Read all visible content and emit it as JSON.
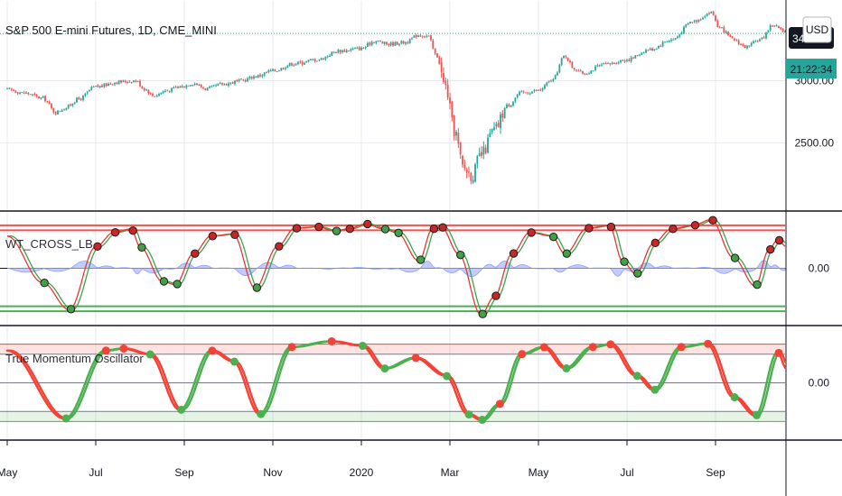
{
  "header": {
    "symbol_title": "S&P 500 E-mini Futures, 1D, CME_MINI",
    "currency_button": "USD",
    "price_badge": "34",
    "time_badge": "21:22:34"
  },
  "colors": {
    "up": "#26a69a",
    "down": "#ef5350",
    "wt_fast": "#e53935",
    "wt_slow": "#43a047",
    "wt_area": "#9fa8ff",
    "ob_line": "#ef5350",
    "os_line": "#4caf50",
    "tmo_up": "#4caf50",
    "tmo_down": "#f44336",
    "grid": "#e6e9ef",
    "axis": "#131722",
    "badge_bg": "#131722"
  },
  "chart_data": [
    {
      "type": "candlestick",
      "title": "S&P 500 E-mini Futures, 1D, CME_MINI",
      "ylim": [
        1950,
        3650
      ],
      "y_ticks": [
        "2500.00",
        "3000.00"
      ],
      "x_labels": [
        "May",
        "Jul",
        "Sep",
        "Nov",
        "2020",
        "Mar",
        "May",
        "Jul",
        "Sep"
      ],
      "x_months": [
        0,
        2,
        4,
        6,
        8,
        10,
        12,
        14,
        16
      ],
      "x_end": 17.6,
      "close_anchors": [
        [
          0,
          2930
        ],
        [
          0.4,
          2900
        ],
        [
          0.8,
          2860
        ],
        [
          1.1,
          2745
        ],
        [
          1.3,
          2780
        ],
        [
          1.6,
          2850
        ],
        [
          2.0,
          2950
        ],
        [
          2.5,
          2990
        ],
        [
          2.9,
          3000
        ],
        [
          3.1,
          2935
        ],
        [
          3.3,
          2880
        ],
        [
          3.6,
          2920
        ],
        [
          3.9,
          2950
        ],
        [
          4.2,
          2980
        ],
        [
          4.5,
          2935
        ],
        [
          4.9,
          2975
        ],
        [
          5.3,
          3000
        ],
        [
          5.6,
          3035
        ],
        [
          6.0,
          3080
        ],
        [
          6.5,
          3140
        ],
        [
          7.0,
          3170
        ],
        [
          7.5,
          3240
        ],
        [
          8.0,
          3260
        ],
        [
          8.3,
          3320
        ],
        [
          8.6,
          3295
        ],
        [
          9.0,
          3310
        ],
        [
          9.3,
          3370
        ],
        [
          9.5,
          3360
        ],
        [
          9.7,
          3200
        ],
        [
          9.9,
          2950
        ],
        [
          10.1,
          2600
        ],
        [
          10.3,
          2300
        ],
        [
          10.5,
          2240
        ],
        [
          10.7,
          2400
        ],
        [
          11.0,
          2600
        ],
        [
          11.3,
          2800
        ],
        [
          11.6,
          2900
        ],
        [
          12.0,
          2920
        ],
        [
          12.3,
          3000
        ],
        [
          12.6,
          3200
        ],
        [
          12.8,
          3100
        ],
        [
          13.0,
          3060
        ],
        [
          13.5,
          3130
        ],
        [
          14.0,
          3170
        ],
        [
          14.5,
          3250
        ],
        [
          15.0,
          3330
        ],
        [
          15.5,
          3480
        ],
        [
          15.9,
          3550
        ],
        [
          16.1,
          3420
        ],
        [
          16.4,
          3330
        ],
        [
          16.7,
          3270
        ],
        [
          17.0,
          3330
        ],
        [
          17.3,
          3450
        ],
        [
          17.6,
          3380
        ]
      ]
    },
    {
      "type": "line",
      "title": "WT_CROSS_LB",
      "ylim": [
        -80,
        80
      ],
      "y_ticks": [
        "0.00"
      ],
      "levels": [
        60,
        53,
        -53,
        -60
      ],
      "turn_anchors": [
        [
          0,
          45
        ],
        [
          0.8,
          -20
        ],
        [
          1.4,
          -58
        ],
        [
          2.0,
          30
        ],
        [
          2.4,
          50
        ],
        [
          2.8,
          55
        ],
        [
          3.0,
          30
        ],
        [
          3.5,
          -18
        ],
        [
          3.8,
          -23
        ],
        [
          4.2,
          20
        ],
        [
          4.6,
          45
        ],
        [
          5.1,
          48
        ],
        [
          5.6,
          -28
        ],
        [
          6.1,
          30
        ],
        [
          6.5,
          56
        ],
        [
          7.0,
          58
        ],
        [
          7.4,
          52
        ],
        [
          7.7,
          55
        ],
        [
          8.1,
          62
        ],
        [
          8.5,
          55
        ],
        [
          8.8,
          50
        ],
        [
          9.3,
          10
        ],
        [
          9.6,
          55
        ],
        [
          9.8,
          58
        ],
        [
          10.2,
          20
        ],
        [
          10.7,
          -65
        ],
        [
          11.0,
          -40
        ],
        [
          11.4,
          20
        ],
        [
          11.8,
          50
        ],
        [
          12.3,
          45
        ],
        [
          12.6,
          20
        ],
        [
          13.1,
          56
        ],
        [
          13.6,
          60
        ],
        [
          13.9,
          10
        ],
        [
          14.2,
          -8
        ],
        [
          14.6,
          35
        ],
        [
          15.0,
          55
        ],
        [
          15.5,
          60
        ],
        [
          15.9,
          68
        ],
        [
          16.4,
          15
        ],
        [
          16.9,
          -25
        ],
        [
          17.2,
          25
        ],
        [
          17.4,
          40
        ],
        [
          17.6,
          30
        ]
      ]
    },
    {
      "type": "line",
      "title": "True Momentum Oscillator",
      "ylim": [
        -80,
        80
      ],
      "y_ticks": [
        "0.00"
      ],
      "levels": [
        54,
        40,
        -40,
        -54
      ],
      "turn_anchors": [
        [
          0,
          45
        ],
        [
          1.3,
          -50
        ],
        [
          2.2,
          45
        ],
        [
          2.6,
          48
        ],
        [
          3.2,
          40
        ],
        [
          3.9,
          -38
        ],
        [
          4.6,
          45
        ],
        [
          5.1,
          30
        ],
        [
          5.7,
          -44
        ],
        [
          6.4,
          50
        ],
        [
          7.3,
          58
        ],
        [
          8.0,
          52
        ],
        [
          8.5,
          20
        ],
        [
          9.2,
          35
        ],
        [
          9.9,
          10
        ],
        [
          10.4,
          -44
        ],
        [
          10.7,
          -52
        ],
        [
          11.1,
          -30
        ],
        [
          11.6,
          40
        ],
        [
          12.1,
          50
        ],
        [
          12.6,
          20
        ],
        [
          13.2,
          50
        ],
        [
          13.6,
          54
        ],
        [
          14.2,
          10
        ],
        [
          14.6,
          -10
        ],
        [
          15.2,
          50
        ],
        [
          15.8,
          55
        ],
        [
          16.4,
          -20
        ],
        [
          16.9,
          -46
        ],
        [
          17.4,
          43
        ],
        [
          17.6,
          20
        ]
      ]
    }
  ],
  "indicators": {
    "wt_label": "WT_CROSS_LB",
    "wt_zero_label": "0.00",
    "tmo_label": "True Momentum Oscillator",
    "tmo_zero_label": "0.00"
  }
}
